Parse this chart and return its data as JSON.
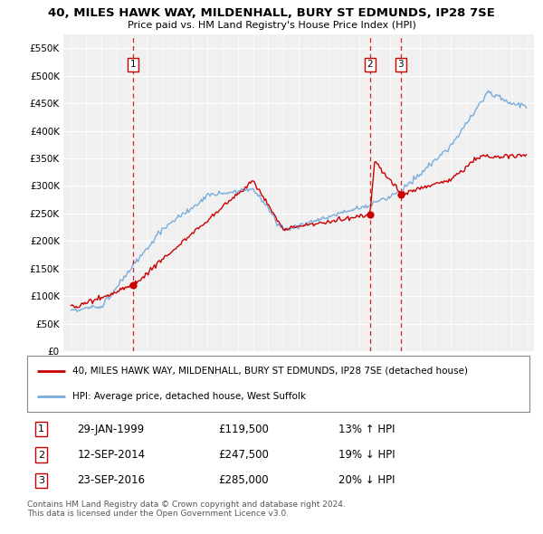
{
  "title": "40, MILES HAWK WAY, MILDENHALL, BURY ST EDMUNDS, IP28 7SE",
  "subtitle": "Price paid vs. HM Land Registry's House Price Index (HPI)",
  "ylim": [
    0,
    575000
  ],
  "yticks": [
    0,
    50000,
    100000,
    150000,
    200000,
    250000,
    300000,
    350000,
    400000,
    450000,
    500000,
    550000
  ],
  "ytick_labels": [
    "£0",
    "£50K",
    "£100K",
    "£150K",
    "£200K",
    "£250K",
    "£300K",
    "£350K",
    "£400K",
    "£450K",
    "£500K",
    "£550K"
  ],
  "red_color": "#cc0000",
  "blue_color": "#7aaddb",
  "vline_color": "#cc0000",
  "transactions": [
    {
      "label": "1",
      "date": "29-JAN-1999",
      "price": 119500,
      "hpi_pct": "13% ↑ HPI",
      "x": 1999.08
    },
    {
      "label": "2",
      "date": "12-SEP-2014",
      "price": 247500,
      "hpi_pct": "19% ↓ HPI",
      "x": 2014.71
    },
    {
      "label": "3",
      "date": "23-SEP-2016",
      "price": 285000,
      "hpi_pct": "20% ↓ HPI",
      "x": 2016.73
    }
  ],
  "legend_entries": [
    "40, MILES HAWK WAY, MILDENHALL, BURY ST EDMUNDS, IP28 7SE (detached house)",
    "HPI: Average price, detached house, West Suffolk"
  ],
  "footnote": "Contains HM Land Registry data © Crown copyright and database right 2024.\nThis data is licensed under the Open Government Licence v3.0.",
  "background_color": "#ffffff",
  "plot_bg_color": "#f0f0f0"
}
